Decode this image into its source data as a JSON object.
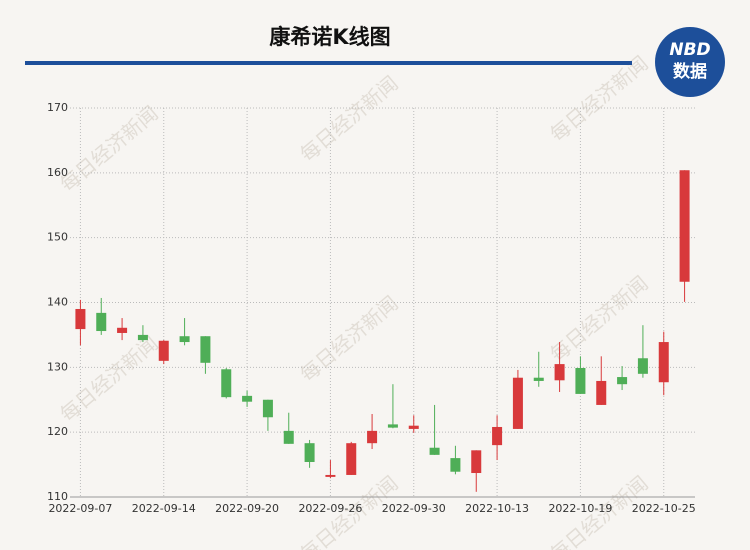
{
  "chart_data": {
    "type": "candlestick",
    "title": "康希诺K线图",
    "categories": [
      "2022-09-07",
      null,
      null,
      null,
      "2022-09-14",
      null,
      null,
      null,
      "2022-09-20",
      null,
      null,
      null,
      "2022-09-26",
      null,
      null,
      null,
      "2022-09-30",
      null,
      null,
      null,
      "2022-10-13",
      null,
      null,
      null,
      "2022-10-19",
      null,
      null,
      null,
      "2022-10-25",
      null
    ],
    "open": [
      135.9,
      138.4,
      135.3,
      135.0,
      131.0,
      134.8,
      134.8,
      129.7,
      125.6,
      125.0,
      120.2,
      118.3,
      113.1,
      113.4,
      118.3,
      121.2,
      120.5,
      117.6,
      116.0,
      113.7,
      118.0,
      120.5,
      128.4,
      128.0,
      129.9,
      124.2,
      128.5,
      131.4,
      127.7,
      143.2
    ],
    "high": [
      140.4,
      140.7,
      137.6,
      136.5,
      134.2,
      137.6,
      134.8,
      129.9,
      126.4,
      125.0,
      123.0,
      118.8,
      115.7,
      118.5,
      122.8,
      127.4,
      122.6,
      124.2,
      117.9,
      117.2,
      122.6,
      129.6,
      132.4,
      133.9,
      131.7,
      131.7,
      130.2,
      136.5,
      135.5,
      160.4
    ],
    "low": [
      133.4,
      135.0,
      134.2,
      133.9,
      130.5,
      133.4,
      129.0,
      125.2,
      123.9,
      120.2,
      118.2,
      114.5,
      112.9,
      113.4,
      117.4,
      120.6,
      119.9,
      116.5,
      113.5,
      110.8,
      115.7,
      120.5,
      127.0,
      126.2,
      125.9,
      124.2,
      126.5,
      128.4,
      125.7,
      140.1
    ],
    "close": [
      139.0,
      135.6,
      136.1,
      134.2,
      134.1,
      133.9,
      130.7,
      125.4,
      124.7,
      122.3,
      118.2,
      115.4,
      113.4,
      118.3,
      120.2,
      120.7,
      121.0,
      116.5,
      113.9,
      117.2,
      120.8,
      128.4,
      127.9,
      130.5,
      125.9,
      127.9,
      127.4,
      129.0,
      133.9,
      160.4
    ],
    "up_color": "#d8393b",
    "down_color": "#4fae57",
    "ylim": [
      110,
      170
    ],
    "yticks": [
      110,
      120,
      130,
      140,
      150,
      160,
      170
    ],
    "grid": true
  },
  "logo": {
    "brand": "NBD",
    "label": "数据"
  },
  "watermark": "每日经济新闻"
}
